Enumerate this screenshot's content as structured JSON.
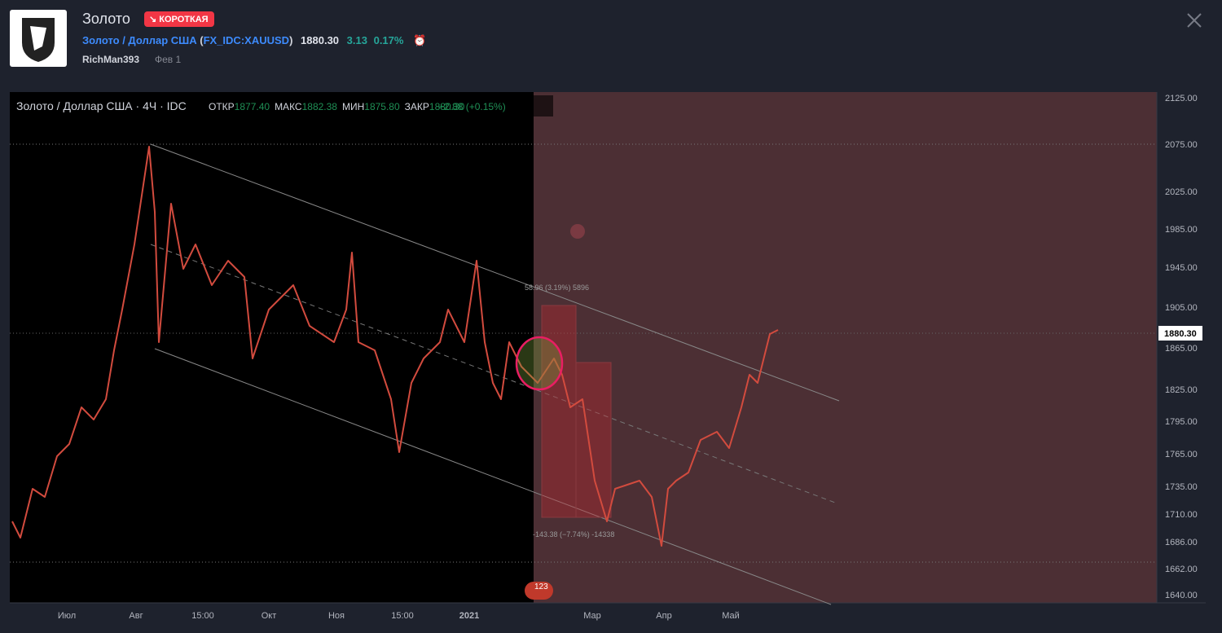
{
  "header": {
    "title": "Золото",
    "badge": "КОРОТКАЯ",
    "symbol_name": "Золото / Доллар США",
    "ticker": "FX_IDC:XAUUSD",
    "price": "1880.30",
    "change": "3.13",
    "change_pct": "0.17%",
    "author": "RichMan393",
    "date": "Фев 1"
  },
  "chart": {
    "legend": "Золото / Доллар США · 4Ч · IDC",
    "ohlc": [
      {
        "label": "ОТКР",
        "value": "1877.40"
      },
      {
        "label": "МАКС",
        "value": "1882.38"
      },
      {
        "label": "МИН",
        "value": "1875.80"
      },
      {
        "label": "ЗАКР",
        "value": "1880.30"
      }
    ],
    "legend_change": "+2.88 (+0.15%)",
    "price_labels": [
      "2125.00",
      "2075.00",
      "2025.00",
      "1985.00",
      "1945.00",
      "1905.00",
      "1865.00",
      "1825.00",
      "1795.00",
      "1765.00",
      "1735.00",
      "1710.00",
      "1686.00",
      "1662.00",
      "1640.00"
    ],
    "current_price": "1880.30",
    "time_labels": [
      "Июл",
      "Авг",
      "15:00",
      "Окт",
      "Ноя",
      "15:00",
      "2021",
      "Мар",
      "Апр",
      "Май"
    ],
    "annotations": {
      "upper": "58.96 (3.19%) 5896",
      "lower": "-143.38 (−7.74%) -14338",
      "events": "123"
    }
  }
}
